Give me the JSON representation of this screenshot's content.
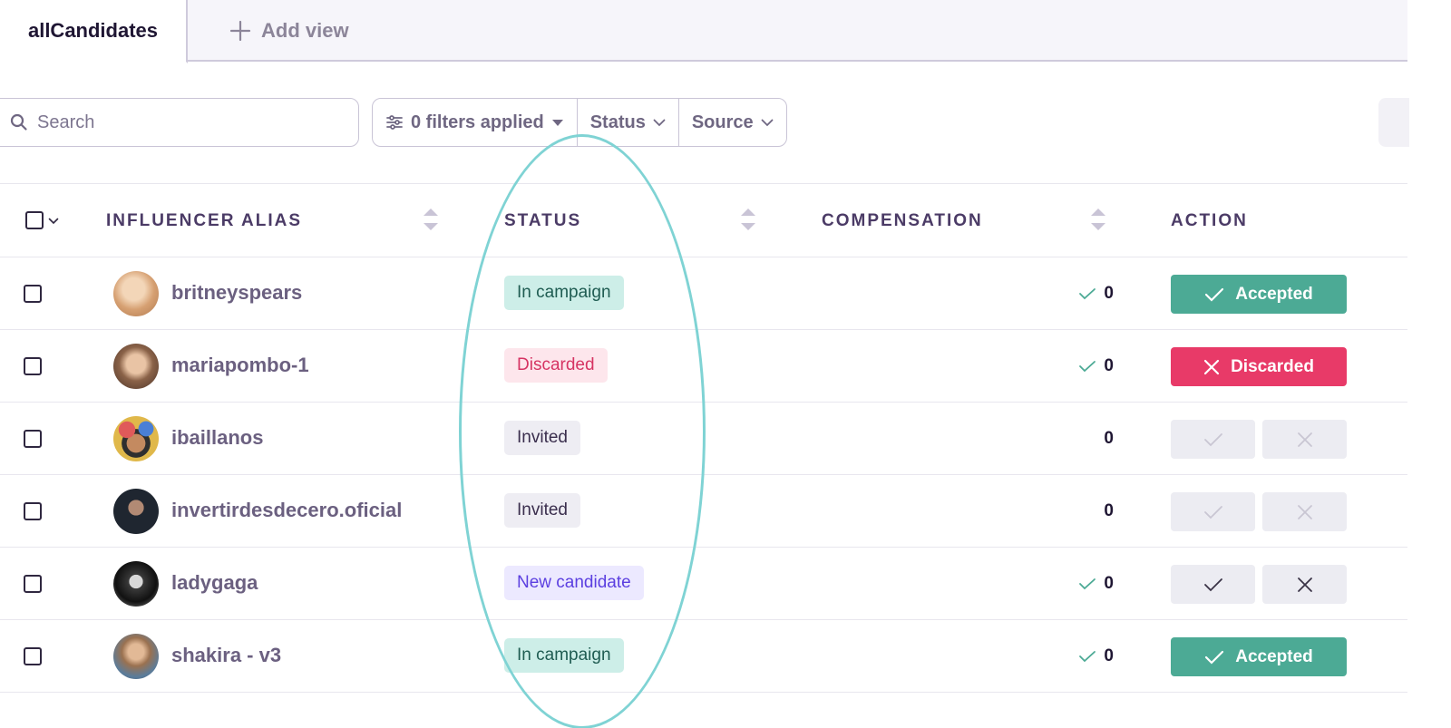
{
  "tabs": {
    "active": "allCandidates",
    "add_view": "Add view"
  },
  "toolbar": {
    "search_placeholder": "Search",
    "filters_label": "0 filters applied",
    "status_label": "Status",
    "source_label": "Source"
  },
  "table": {
    "headers": {
      "alias": "INFLUENCER ALIAS",
      "status": "STATUS",
      "compensation": "COMPENSATION",
      "action": "ACTION"
    },
    "rows": [
      {
        "alias": "britneyspears",
        "status": "In campaign",
        "status_kind": "campaign",
        "compensation": "0",
        "comp_check": true,
        "action": "accepted",
        "action_label": "Accepted"
      },
      {
        "alias": "mariapombo-1",
        "status": "Discarded",
        "status_kind": "discarded",
        "compensation": "0",
        "comp_check": true,
        "action": "discarded",
        "action_label": "Discarded"
      },
      {
        "alias": "ibaillanos",
        "status": "Invited",
        "status_kind": "invited",
        "compensation": "0",
        "comp_check": false,
        "action": "pending-disabled",
        "action_label": ""
      },
      {
        "alias": "invertirdesdecero.oficial",
        "status": "Invited",
        "status_kind": "invited",
        "compensation": "0",
        "comp_check": false,
        "action": "pending-disabled",
        "action_label": ""
      },
      {
        "alias": "ladygaga",
        "status": "New candidate",
        "status_kind": "new",
        "compensation": "0",
        "comp_check": true,
        "action": "pending-active",
        "action_label": ""
      },
      {
        "alias": "shakira - v3",
        "status": "In campaign",
        "status_kind": "campaign",
        "compensation": "0",
        "comp_check": true,
        "action": "accepted",
        "action_label": "Accepted"
      }
    ]
  },
  "colors": {
    "accent_green": "#4caa95",
    "accent_red": "#e83a68",
    "annotation": "#7fd3d4",
    "badge_campaign_bg": "#cdeee8",
    "badge_discarded_bg": "#fde6ec",
    "badge_invited_bg": "#eeedf3",
    "badge_new_bg": "#ece9ff"
  }
}
